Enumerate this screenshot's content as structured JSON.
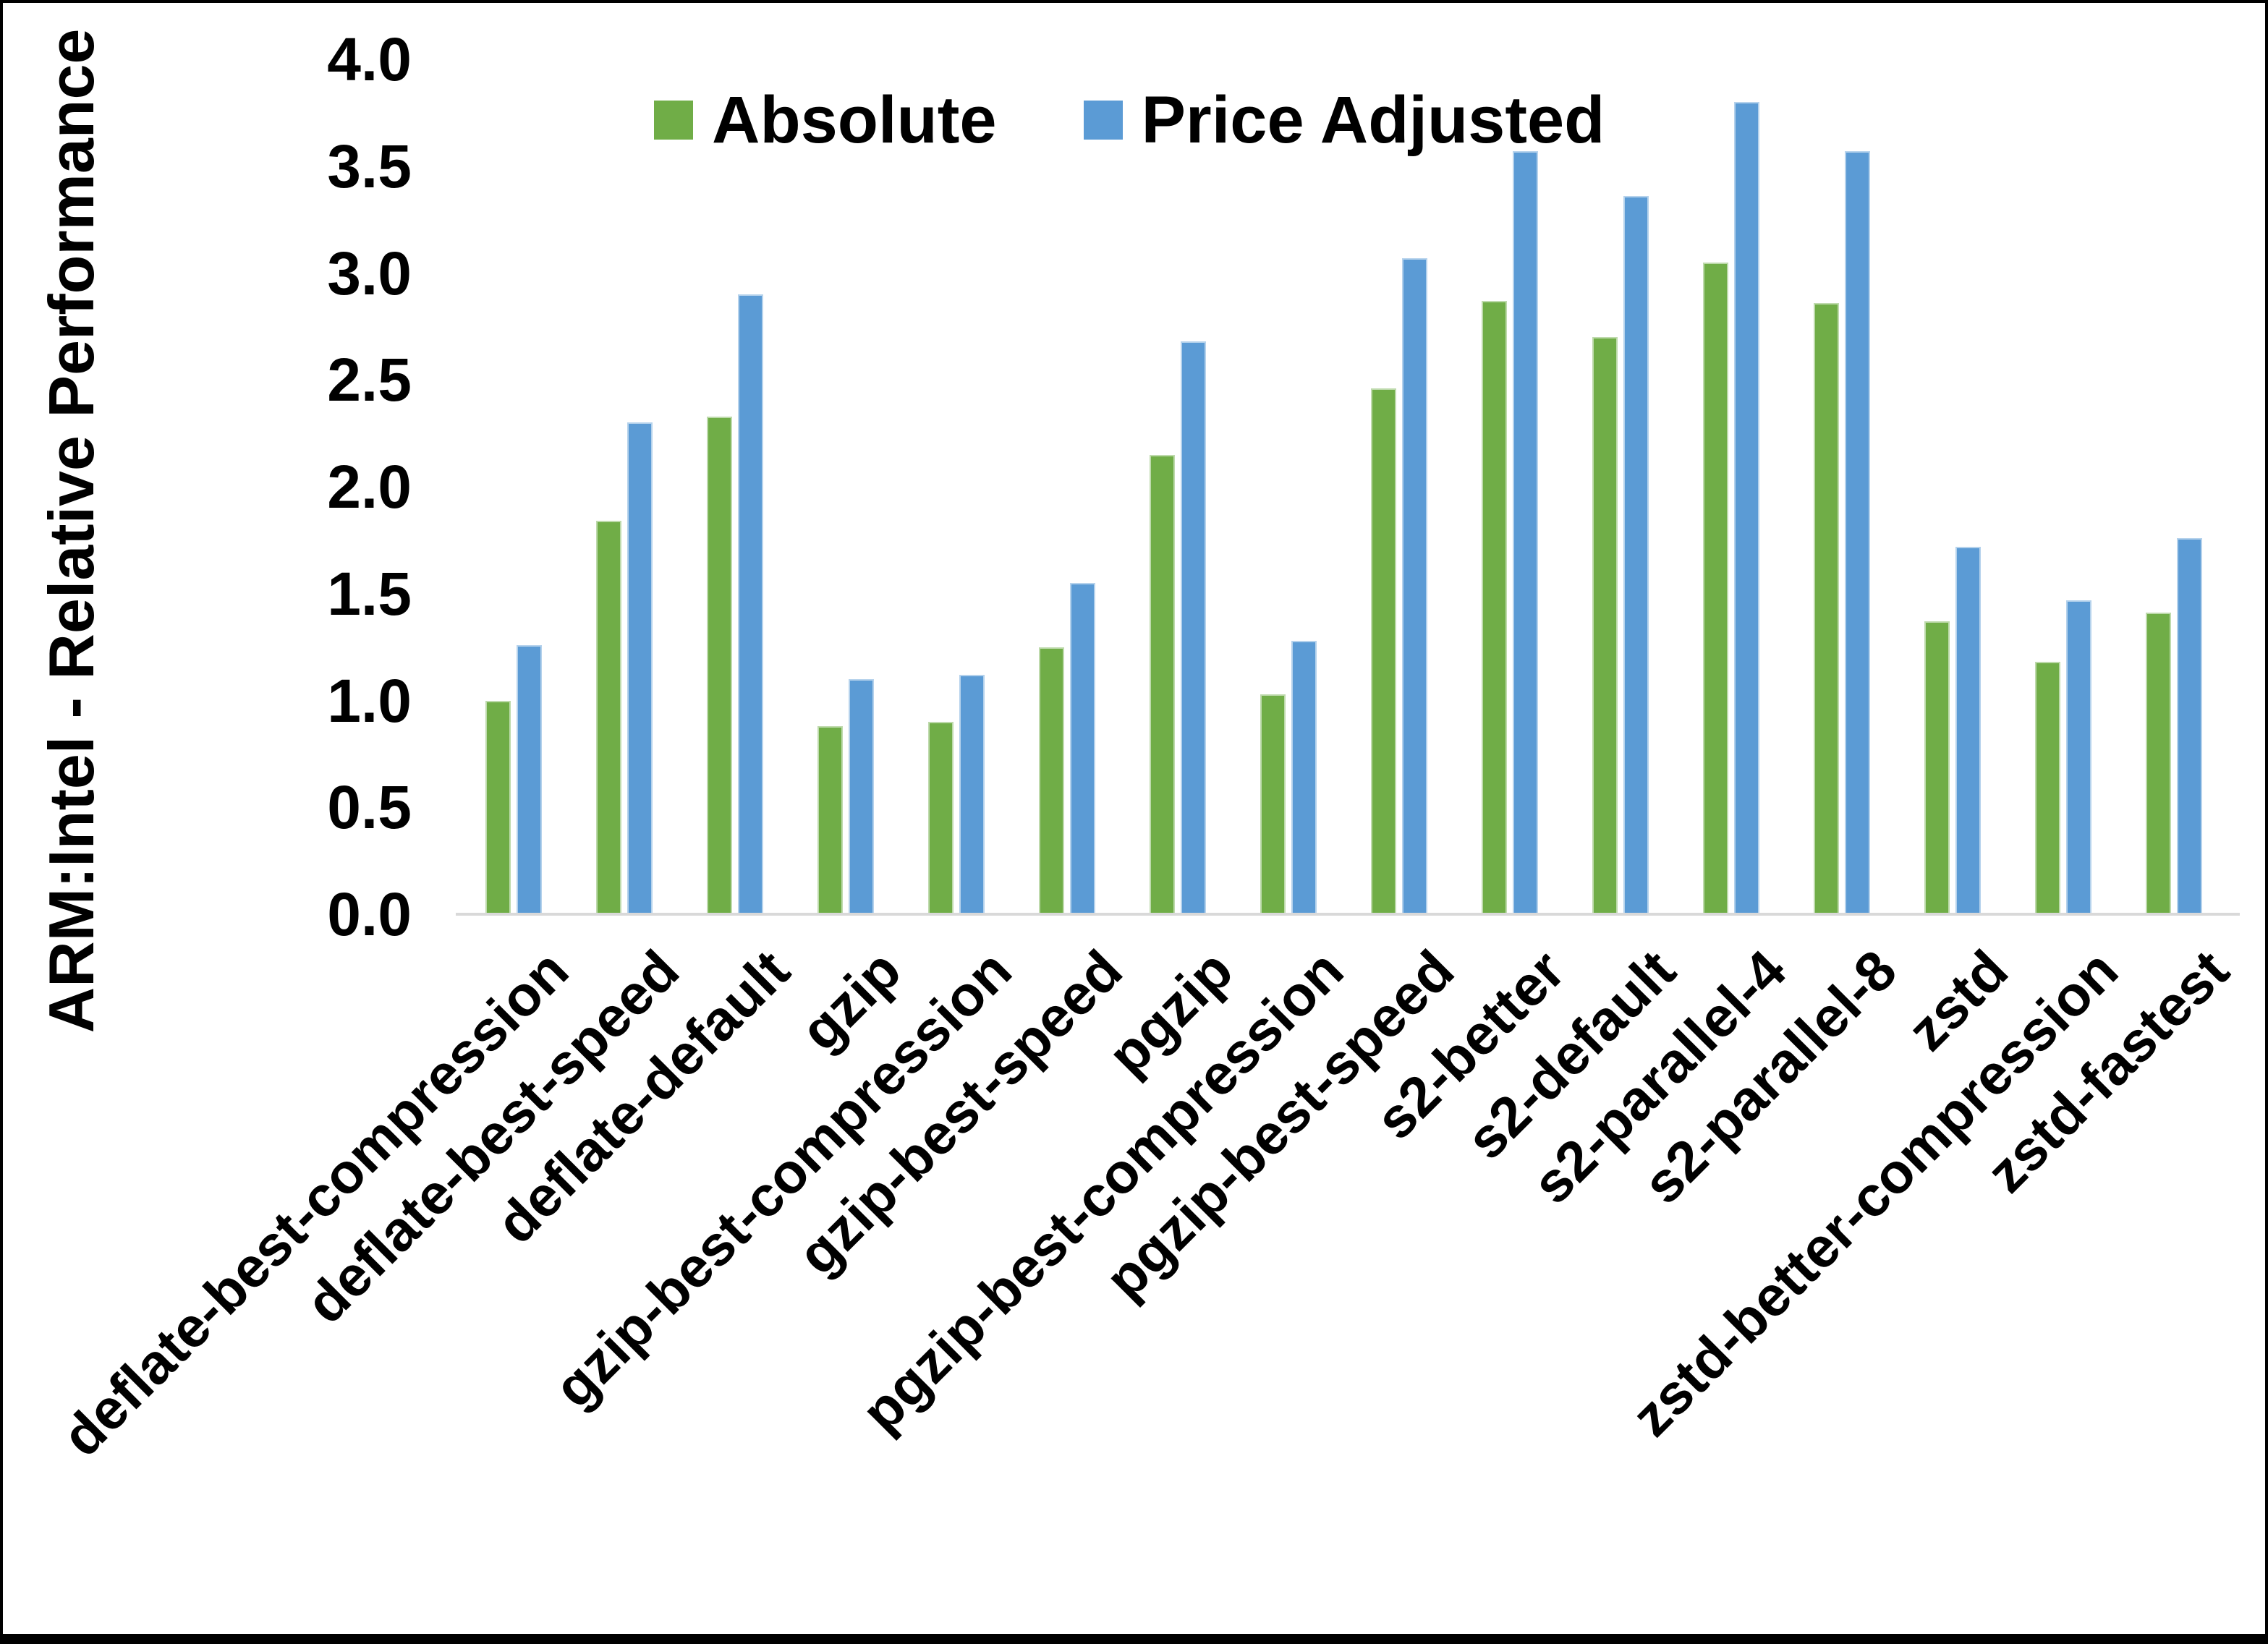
{
  "chart_data": {
    "type": "bar",
    "title": "",
    "ylabel": "ARM:Intel - Relative Performance",
    "xlabel": "",
    "ylim": [
      0.0,
      4.0
    ],
    "ytick_step": 0.5,
    "yticks": [
      "0.0",
      "0.5",
      "1.0",
      "1.5",
      "2.0",
      "2.5",
      "3.0",
      "3.5",
      "4.0"
    ],
    "grid": false,
    "legend_position": "top-center",
    "categories": [
      "deflate-best-compression",
      "deflate-best-speed",
      "deflate-default",
      "gzip",
      "gzip-best-compression",
      "gzip-best-speed",
      "pgzip",
      "pgzip-best-compression",
      "pgzip-best-speed",
      "s2-better",
      "s2-default",
      "s2-parallel-4",
      "s2-parallel-8",
      "zstd",
      "zstd-better-compression",
      "zstd-fastest"
    ],
    "series": [
      {
        "name": "Absolute",
        "color": "#70AD47",
        "values": [
          1.0,
          1.84,
          2.33,
          0.88,
          0.9,
          1.25,
          2.15,
          1.03,
          2.46,
          2.87,
          2.7,
          3.05,
          2.86,
          1.37,
          1.18,
          1.41
        ]
      },
      {
        "name": "Price Adjusted",
        "color": "#5B9BD5",
        "values": [
          1.26,
          2.3,
          2.9,
          1.1,
          1.12,
          1.55,
          2.68,
          1.28,
          3.07,
          3.57,
          3.36,
          3.8,
          3.57,
          1.72,
          1.47,
          1.76
        ]
      }
    ],
    "axis_line_color": "#D9D9D9",
    "text_color": "#000000",
    "background_color": "#FFFFFF"
  }
}
